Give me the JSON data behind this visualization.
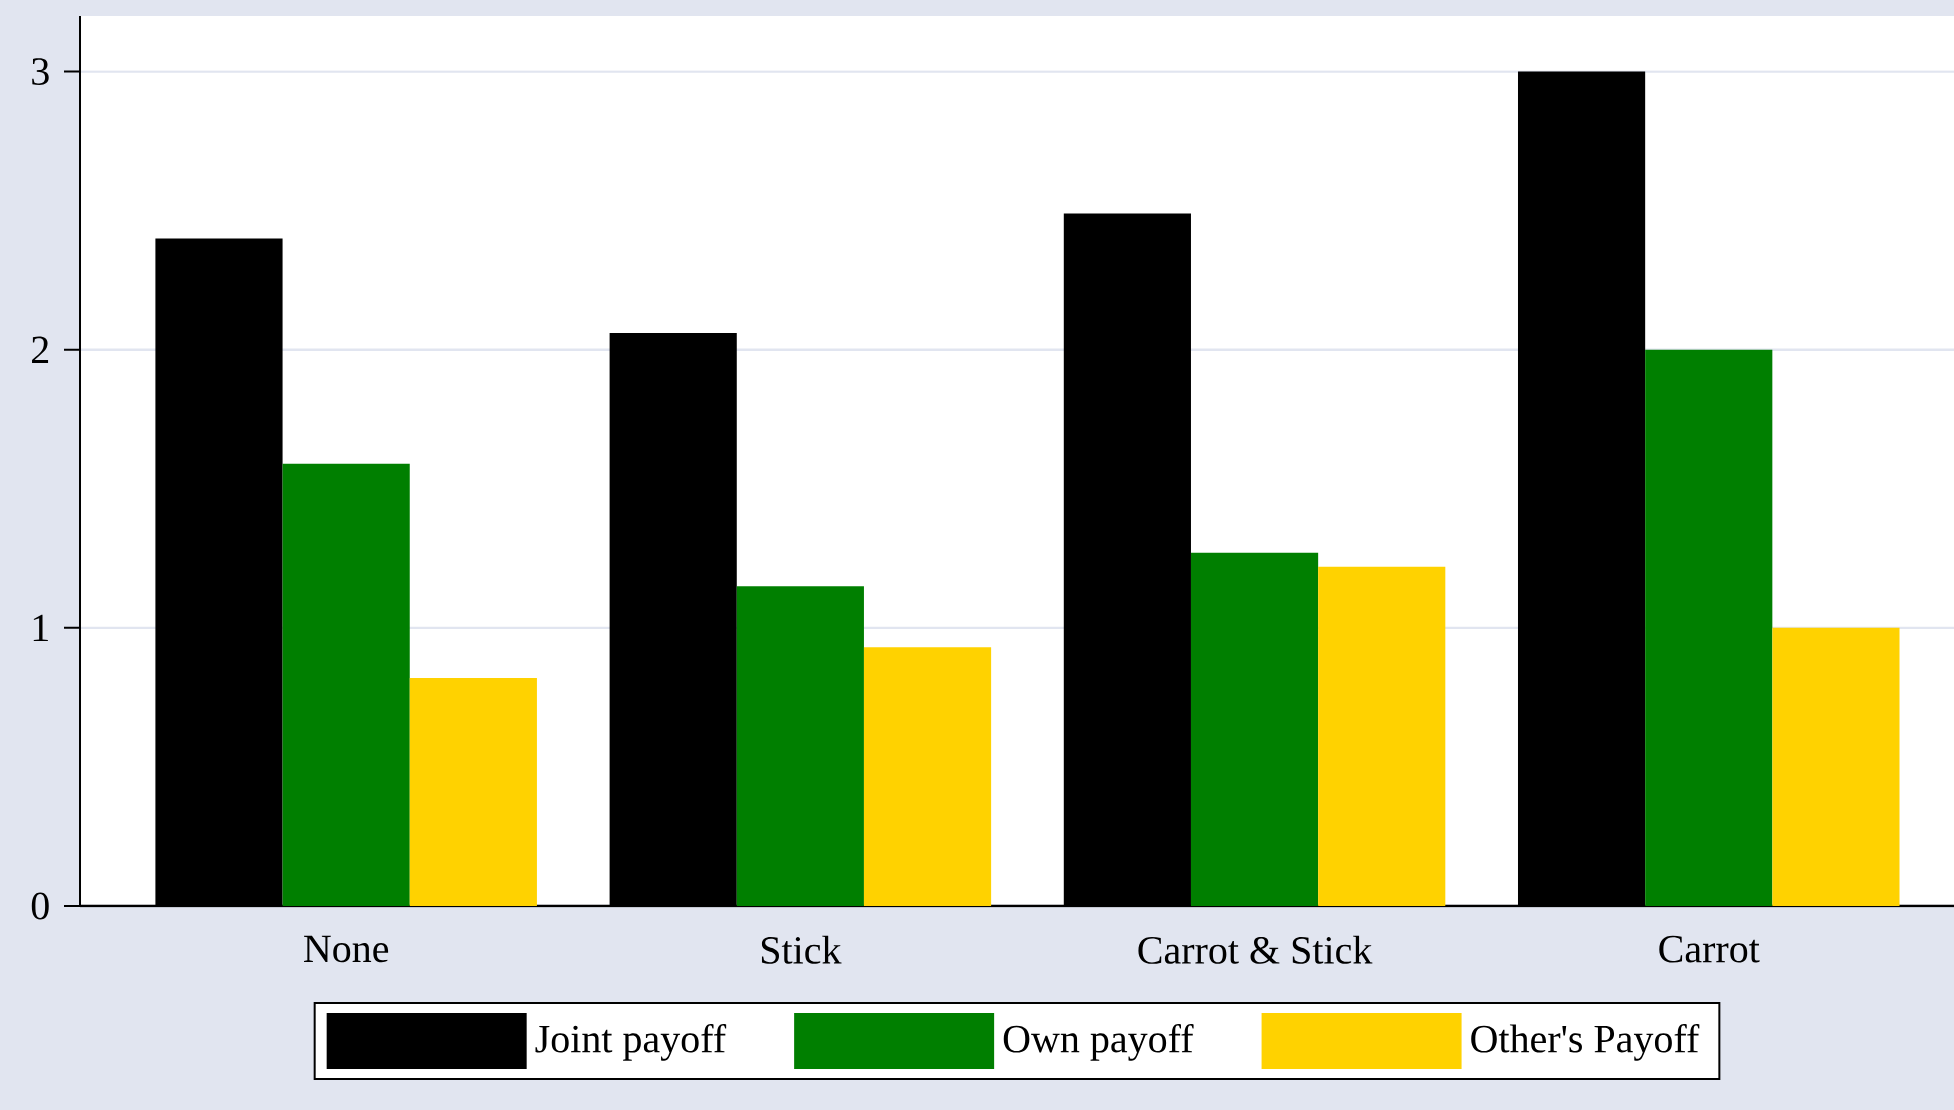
{
  "chart_data": {
    "type": "bar",
    "categories": [
      "None",
      "Stick",
      "Carrot & Stick",
      "Carrot"
    ],
    "series": [
      {
        "name": "Joint payoff",
        "color": "#000000",
        "values": [
          2.4,
          2.06,
          2.49,
          3.0
        ]
      },
      {
        "name": "Own payoff",
        "color": "#007f00",
        "values": [
          1.59,
          1.15,
          1.27,
          2.0
        ]
      },
      {
        "name": "Other's Payoff",
        "color": "#ffd200",
        "values": [
          0.82,
          0.93,
          1.22,
          1.0
        ]
      }
    ],
    "ylim": [
      0,
      3.2
    ],
    "yticks": [
      0,
      1,
      2,
      3
    ],
    "grid": "y",
    "legend": "bottom"
  }
}
